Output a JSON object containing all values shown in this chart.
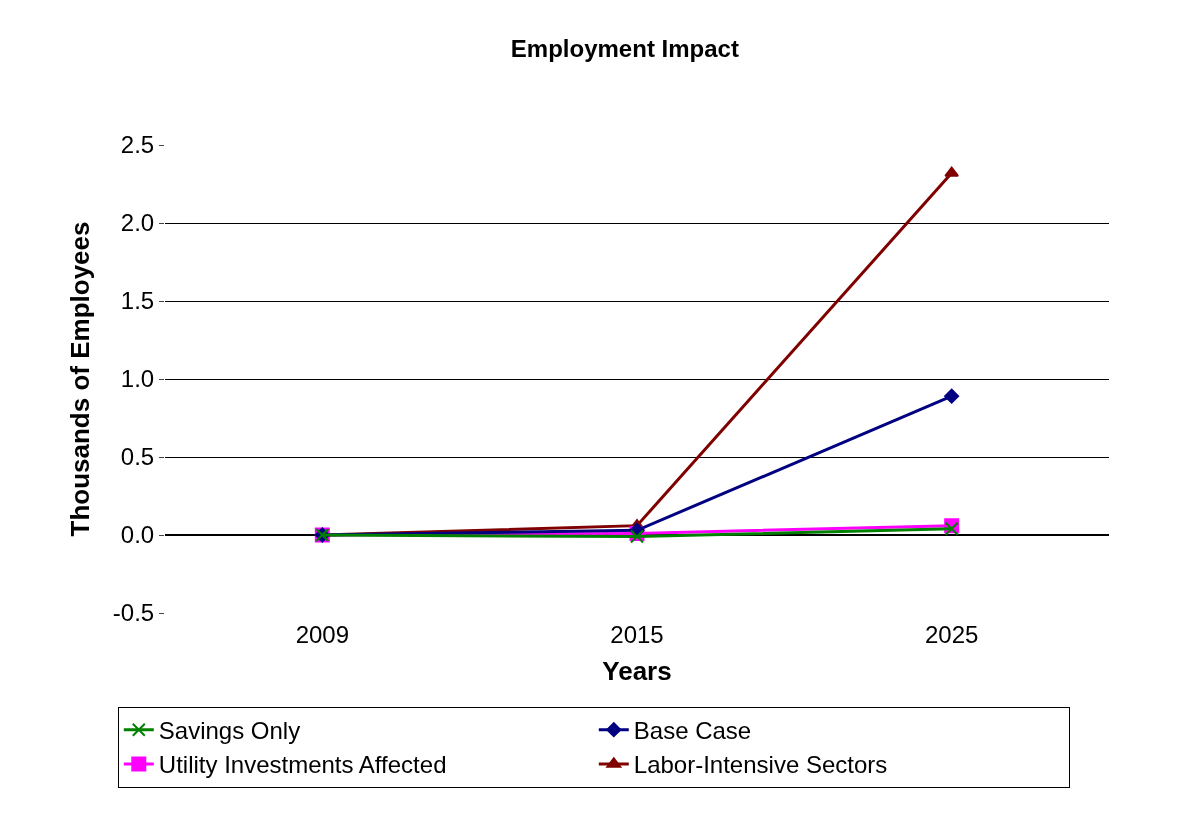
{
  "chart_data": {
    "type": "line",
    "title": "Employment Impact",
    "xlabel": "Years",
    "ylabel": "Thousands of Employees",
    "categories": [
      "2009",
      "2015",
      "2025"
    ],
    "series": [
      {
        "name": "Savings Only",
        "color": "#008000",
        "marker": "cross",
        "values": [
          0.0,
          -0.01,
          0.04
        ]
      },
      {
        "name": "Base Case",
        "color": "#000080",
        "marker": "diamond",
        "values": [
          0.0,
          0.03,
          0.89
        ]
      },
      {
        "name": "Utility Investments Affected",
        "color": "#ff00ff",
        "marker": "square",
        "values": [
          0.0,
          0.01,
          0.06
        ]
      },
      {
        "name": "Labor-Intensive Sectors",
        "color": "#800000",
        "marker": "triangle",
        "values": [
          0.0,
          0.06,
          2.32
        ]
      }
    ],
    "ylim": [
      -0.5,
      2.5
    ],
    "yticks": [
      {
        "value": -0.5,
        "label": "-0.5"
      },
      {
        "value": 0,
        "label": "0.0"
      },
      {
        "value": 0.5,
        "label": "0.5"
      },
      {
        "value": 1,
        "label": "1.0"
      },
      {
        "value": 1.5,
        "label": "1.5"
      },
      {
        "value": 2,
        "label": "2.0"
      },
      {
        "value": 2.5,
        "label": "2.5"
      }
    ],
    "grid": "y",
    "legend": "bottom"
  }
}
